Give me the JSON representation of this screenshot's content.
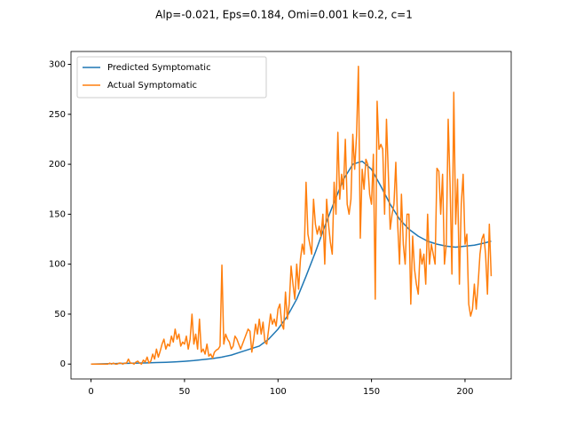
{
  "chart_data": {
    "type": "line",
    "title": "Alp=-0.021, Eps=0.184, Omi=0.001 k=0.2, c=1",
    "xlim": [
      -10.7,
      224.7
    ],
    "ylim": [
      -14.9,
      312.9
    ],
    "xticks": [
      0,
      50,
      100,
      150,
      200
    ],
    "yticks": [
      0,
      50,
      100,
      150,
      200,
      250,
      300
    ],
    "grid": false,
    "legend": "upper left",
    "series": [
      {
        "name": "Predicted Symptomatic",
        "color": "#1f77b4",
        "x": [
          0,
          5,
          10,
          15,
          20,
          25,
          30,
          35,
          40,
          45,
          50,
          55,
          60,
          65,
          70,
          75,
          80,
          85,
          90,
          95,
          100,
          105,
          110,
          115,
          120,
          125,
          130,
          135,
          140,
          145,
          150,
          155,
          160,
          165,
          170,
          175,
          180,
          185,
          190,
          195,
          200,
          205,
          210,
          214
        ],
        "values": [
          0,
          0.2,
          0.4,
          0.6,
          0.8,
          1,
          1.2,
          1.5,
          1.8,
          2.2,
          2.8,
          3.5,
          4.5,
          5.5,
          7,
          9,
          12,
          15,
          18,
          25,
          35,
          48,
          65,
          88,
          112,
          138,
          162,
          185,
          200,
          203,
          195,
          178,
          160,
          145,
          135,
          128,
          123,
          120,
          118,
          117,
          118,
          119,
          121,
          123
        ]
      },
      {
        "name": "Actual Symptomatic",
        "color": "#ff7f0e",
        "x": [
          0,
          1,
          2,
          3,
          4,
          5,
          6,
          7,
          8,
          9,
          10,
          11,
          12,
          13,
          14,
          15,
          16,
          17,
          18,
          19,
          20,
          21,
          22,
          23,
          24,
          25,
          26,
          27,
          28,
          29,
          30,
          31,
          32,
          33,
          34,
          35,
          36,
          37,
          38,
          39,
          40,
          41,
          42,
          43,
          44,
          45,
          46,
          47,
          48,
          49,
          50,
          51,
          52,
          53,
          54,
          55,
          56,
          57,
          58,
          59,
          60,
          61,
          62,
          63,
          64,
          65,
          66,
          67,
          68,
          69,
          70,
          71,
          72,
          73,
          74,
          75,
          76,
          77,
          78,
          79,
          80,
          81,
          82,
          83,
          84,
          85,
          86,
          87,
          88,
          89,
          90,
          91,
          92,
          93,
          94,
          95,
          96,
          97,
          98,
          99,
          100,
          101,
          102,
          103,
          104,
          105,
          106,
          107,
          108,
          109,
          110,
          111,
          112,
          113,
          114,
          115,
          116,
          117,
          118,
          119,
          120,
          121,
          122,
          123,
          124,
          125,
          126,
          127,
          128,
          129,
          130,
          131,
          132,
          133,
          134,
          135,
          136,
          137,
          138,
          139,
          140,
          141,
          142,
          143,
          144,
          145,
          146,
          147,
          148,
          149,
          150,
          151,
          152,
          153,
          154,
          155,
          156,
          157,
          158,
          159,
          160,
          161,
          162,
          163,
          164,
          165,
          166,
          167,
          168,
          169,
          170,
          171,
          172,
          173,
          174,
          175,
          176,
          177,
          178,
          179,
          180,
          181,
          182,
          183,
          184,
          185,
          186,
          187,
          188,
          189,
          190,
          191,
          192,
          193,
          194,
          195,
          196,
          197,
          198,
          199,
          200,
          201,
          202,
          203,
          204,
          205,
          206,
          207,
          208,
          209,
          210,
          211,
          212,
          213,
          214
        ],
        "values": [
          0,
          0,
          0,
          0,
          0,
          0,
          0,
          0,
          0,
          0,
          1,
          0,
          1,
          0,
          0,
          1,
          1,
          0,
          1,
          1,
          5,
          1,
          1,
          0,
          2,
          3,
          1,
          0,
          4,
          2,
          7,
          1,
          3,
          10,
          5,
          15,
          7,
          13,
          20,
          25,
          15,
          20,
          18,
          28,
          22,
          35,
          25,
          30,
          18,
          22,
          20,
          28,
          15,
          25,
          50,
          20,
          30,
          15,
          45,
          12,
          15,
          10,
          20,
          8,
          10,
          6,
          12,
          14,
          15,
          18,
          99,
          20,
          30,
          25,
          22,
          15,
          18,
          28,
          25,
          20,
          15,
          20,
          25,
          30,
          35,
          33,
          12,
          25,
          40,
          30,
          45,
          30,
          42,
          22,
          20,
          35,
          50,
          40,
          45,
          38,
          55,
          60,
          40,
          35,
          72,
          45,
          60,
          98,
          80,
          65,
          100,
          75,
          105,
          120,
          110,
          182,
          130,
          120,
          110,
          165,
          140,
          130,
          138,
          128,
          150,
          100,
          165,
          140,
          122,
          110,
          182,
          150,
          232,
          165,
          190,
          175,
          225,
          160,
          150,
          165,
          230,
          195,
          229,
          298,
          126,
          195,
          175,
          205,
          200,
          170,
          160,
          210,
          65,
          263,
          215,
          220,
          215,
          150,
          245,
          190,
          135,
          150,
          160,
          202,
          140,
          100,
          170,
          120,
          100,
          150,
          150,
          60,
          128,
          95,
          80,
          70,
          115,
          100,
          110,
          80,
          150,
          100,
          120,
          110,
          100,
          196,
          193,
          150,
          190,
          100,
          120,
          245,
          180,
          90,
          272,
          140,
          185,
          80,
          160,
          190,
          120,
          130,
          60,
          48,
          55,
          80,
          55,
          80,
          110,
          125,
          130,
          110,
          70,
          140,
          88
        ]
      }
    ]
  }
}
